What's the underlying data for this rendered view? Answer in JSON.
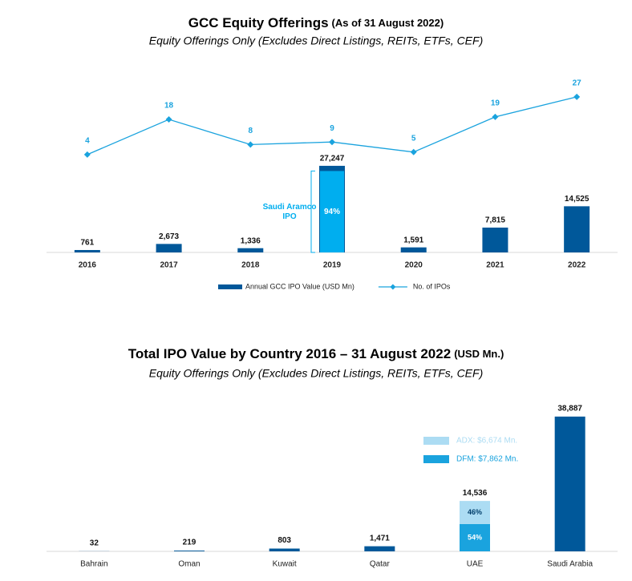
{
  "chart_data": [
    {
      "type": "combo",
      "title": "GCC Equity Offerings",
      "title_note": "(As of 31 August 2022)",
      "subtitle": "Equity Offerings Only (Excludes Direct Listings, REITs, ETFs, CEF)",
      "categories": [
        "2016",
        "2017",
        "2018",
        "2019",
        "2020",
        "2021",
        "2022"
      ],
      "series": [
        {
          "name": "Annual GCC IPO Value (USD Mn)",
          "type": "bar",
          "color": "#00589a",
          "values": [
            761,
            2673,
            1336,
            27247,
            1591,
            7815,
            14525
          ],
          "value_labels": [
            "761",
            "2,673",
            "1,336",
            "27,247",
            "1,591",
            "7,815",
            "14,525"
          ]
        },
        {
          "name": "No. of IPOs",
          "type": "line",
          "axis": "y2",
          "color": "#1aa3de",
          "values": [
            4,
            18,
            8,
            9,
            5,
            19,
            27
          ]
        }
      ],
      "highlight": {
        "index": 3,
        "share": 94,
        "label": "94%",
        "color": "#00aeef",
        "annotation": [
          "Saudi Aramco",
          "IPO"
        ]
      },
      "ylim": [
        0,
        60000
      ],
      "y2lim": [
        -35,
        41
      ],
      "legend": "bottom"
    },
    {
      "type": "stacked_bar",
      "title": "Total IPO Value by Country 2016 – 31 August 2022",
      "title_note": "(USD Mn.)",
      "subtitle": "Equity Offerings Only (Excludes Direct Listings, REITs, ETFs, CEF)",
      "categories": [
        "Bahrain",
        "Oman",
        "Kuwait",
        "Qatar",
        "UAE",
        "Saudi Arabia"
      ],
      "series": [
        {
          "color": "#00589a",
          "values": [
            32,
            219,
            803,
            1471,
            null,
            38887
          ]
        },
        {
          "name": "DFM: $7,862 Mn.",
          "color": "#1aa3de",
          "values": [
            null,
            null,
            null,
            null,
            7862,
            null
          ],
          "shares": [
            null,
            null,
            null,
            null,
            54,
            null
          ],
          "share_labels": [
            null,
            null,
            null,
            null,
            "54%",
            null
          ],
          "label_color": "#ffffff"
        },
        {
          "name": "ADX: $6,674 Mn.",
          "color": "#acdcf3",
          "values": [
            null,
            null,
            null,
            null,
            6674,
            null
          ],
          "shares": [
            null,
            null,
            null,
            null,
            46,
            null
          ],
          "share_labels": [
            null,
            null,
            null,
            null,
            "46%",
            null
          ],
          "label_color": "#003e6b"
        }
      ],
      "totals": [
        32,
        219,
        803,
        1471,
        14536,
        38887
      ],
      "total_labels": [
        "32",
        "219",
        "803",
        "1,471",
        "14,536",
        "38,887"
      ],
      "ylim": [
        0,
        40000
      ],
      "legend": "inside"
    }
  ]
}
